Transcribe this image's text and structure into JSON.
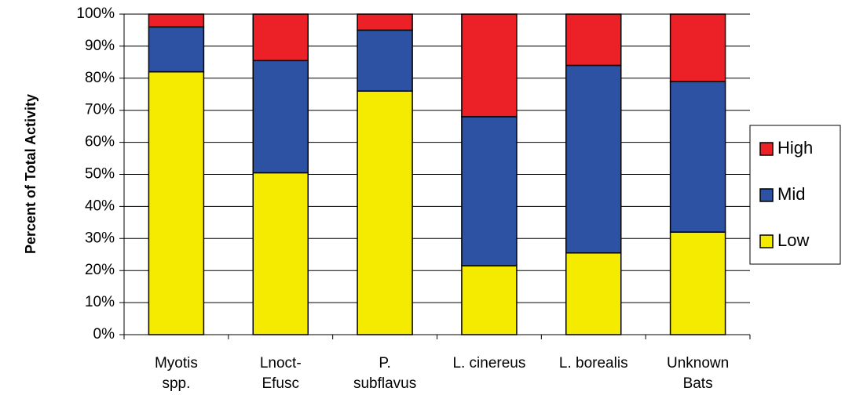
{
  "chart_data": {
    "type": "stacked_bar",
    "y_label": "Percent of Total Activity",
    "categories": [
      "Myotis\nspp.",
      "Lnoct-\nEfusc",
      "P.\nsubflavus",
      "L. cinereus",
      "L. borealis",
      "Unknown\nBats"
    ],
    "series": [
      {
        "name": "Low",
        "color": "#f5eb00",
        "values": [
          82,
          50.5,
          76,
          21.5,
          25.5,
          32
        ]
      },
      {
        "name": "Mid",
        "color": "#2e52a3",
        "values": [
          14,
          35,
          19,
          46.5,
          58.5,
          47
        ]
      },
      {
        "name": "High",
        "color": "#ec2027",
        "values": [
          4,
          14.5,
          5,
          32,
          16,
          21
        ]
      }
    ],
    "ylim": [
      0,
      100
    ],
    "yticks": [
      {
        "value": 0,
        "label": "0%"
      },
      {
        "value": 10,
        "label": "10%"
      },
      {
        "value": 20,
        "label": "20%"
      },
      {
        "value": 30,
        "label": "30%"
      },
      {
        "value": 40,
        "label": "40%"
      },
      {
        "value": 50,
        "label": "50%"
      },
      {
        "value": 60,
        "label": "60%"
      },
      {
        "value": 70,
        "label": "70%"
      },
      {
        "value": 80,
        "label": "80%"
      },
      {
        "value": 90,
        "label": "90%"
      },
      {
        "value": 100,
        "label": "100%"
      }
    ],
    "grid": true,
    "legend": "right"
  }
}
